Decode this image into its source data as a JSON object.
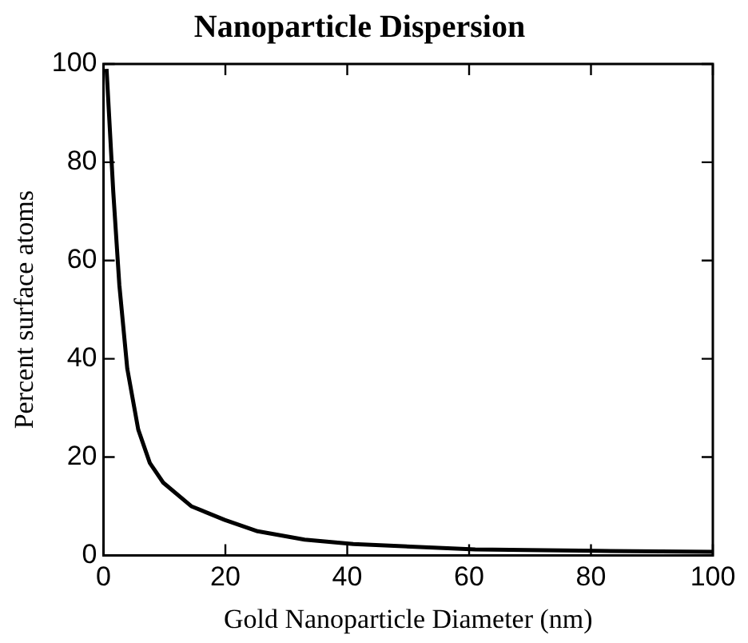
{
  "chart_data": {
    "type": "line",
    "title": "Nanoparticle Dispersion",
    "xlabel": "Gold Nanoparticle Diameter (nm)",
    "ylabel": "Percent surface atoms",
    "series": [
      {
        "color": "#000000",
        "x": [
          0.5,
          1.6,
          2.6,
          3.9,
          5.7,
          7.6,
          9.8,
          14.4,
          19.9,
          25.3,
          33,
          41,
          61,
          81,
          100
        ],
        "values": [
          99,
          74,
          55,
          38,
          25.6,
          18.8,
          14.8,
          10,
          7.2,
          4.9,
          3.2,
          2.3,
          1.2,
          0.9,
          0.7
        ]
      }
    ],
    "xlim": [
      0,
      100
    ],
    "xticks": [
      0,
      20,
      40,
      60,
      80,
      100
    ],
    "ylim": [
      0,
      100
    ],
    "yticks": [
      0,
      20,
      40,
      60,
      80,
      100
    ],
    "grid": false,
    "legend": false,
    "marker": "none",
    "line_style": "solid"
  }
}
